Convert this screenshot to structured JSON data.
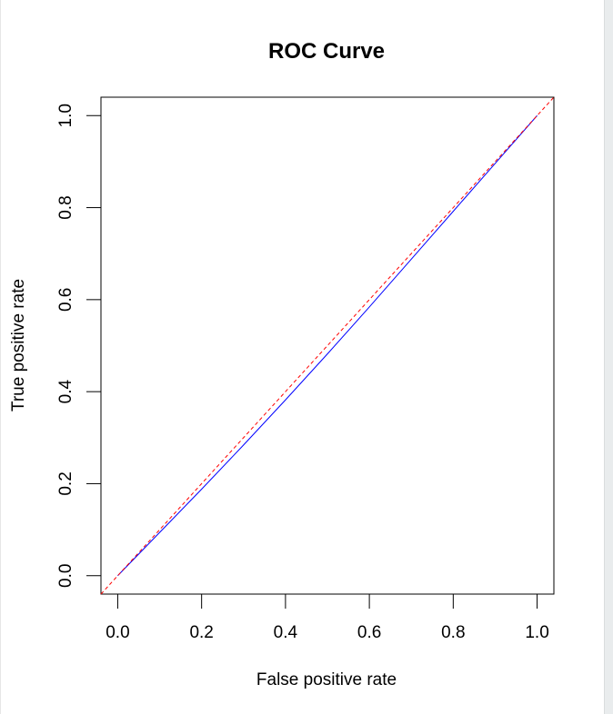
{
  "chart_data": {
    "type": "line",
    "title": "ROC Curve",
    "xlabel": "False positive rate",
    "ylabel": "True positive rate",
    "xlim": [
      -0.04,
      1.04
    ],
    "ylim": [
      -0.04,
      1.04
    ],
    "x_ticks": [
      0.0,
      0.2,
      0.4,
      0.6,
      0.8,
      1.0
    ],
    "y_ticks": [
      0.0,
      0.2,
      0.4,
      0.6,
      0.8,
      1.0
    ],
    "x_tick_labels": [
      "0.0",
      "0.2",
      "0.4",
      "0.6",
      "0.8",
      "1.0"
    ],
    "y_tick_labels": [
      "0.0",
      "0.2",
      "0.4",
      "0.6",
      "0.8",
      "1.0"
    ],
    "grid": false,
    "series": [
      {
        "color": "#0000ff",
        "style": "solid",
        "x": [
          0.0,
          0.1,
          0.2,
          0.3,
          0.4,
          0.5,
          0.6,
          0.7,
          0.8,
          0.9,
          1.0
        ],
        "y": [
          0.0,
          0.094,
          0.188,
          0.284,
          0.382,
          0.482,
          0.584,
          0.688,
          0.792,
          0.896,
          1.0
        ]
      },
      {
        "color": "#ff0000",
        "style": "dashed",
        "x": [
          -0.04,
          1.04
        ],
        "y": [
          -0.04,
          1.04
        ]
      }
    ]
  }
}
